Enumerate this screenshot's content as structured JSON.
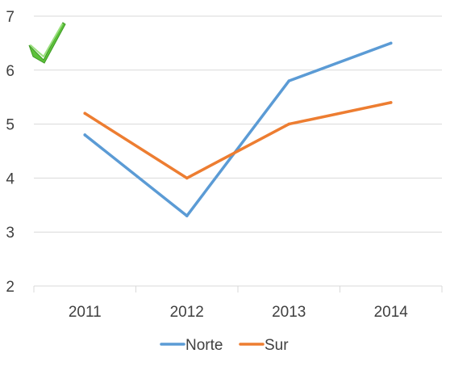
{
  "chart_data": {
    "type": "line",
    "categories": [
      "2011",
      "2012",
      "2013",
      "2014"
    ],
    "series": [
      {
        "name": "Norte",
        "values": [
          4.8,
          3.3,
          5.8,
          6.5
        ],
        "color": "#5B9BD5"
      },
      {
        "name": "Sur",
        "values": [
          5.2,
          4.0,
          5.0,
          5.4
        ],
        "color": "#ED7D31"
      }
    ],
    "y_ticks": [
      "2",
      "3",
      "4",
      "5",
      "6",
      "7"
    ],
    "ylim": [
      2,
      7
    ],
    "grid": true,
    "legend": "bottom",
    "title": "",
    "xlabel": "",
    "ylabel": ""
  },
  "decorations": {
    "checkmark_icon": "checkmark-icon",
    "checkmark_color": "#5CC13A",
    "grid_color": "#D9D9D9",
    "text_color": "#404040"
  }
}
